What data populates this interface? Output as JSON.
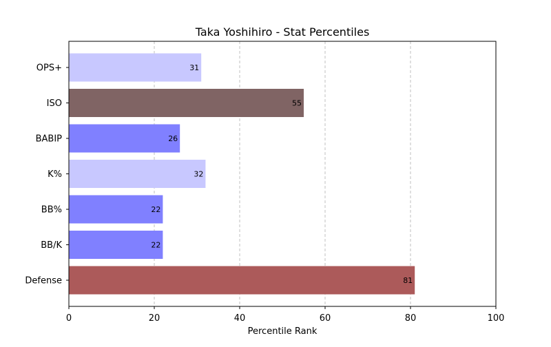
{
  "chart_data": {
    "type": "bar",
    "orientation": "horizontal",
    "title": "Taka Yoshihiro - Stat Percentiles",
    "xlabel": "Percentile Rank",
    "ylabel": "",
    "xlim": [
      0,
      100
    ],
    "xticks": [
      0,
      20,
      40,
      60,
      80,
      100
    ],
    "grid": "x-dashed",
    "categories": [
      "OPS+",
      "ISO",
      "BABIP",
      "K%",
      "BB%",
      "BB/K",
      "Defense"
    ],
    "values": [
      31,
      55,
      26,
      32,
      22,
      22,
      81
    ],
    "colors": [
      "#c8c8ff",
      "#806464",
      "#8080ff",
      "#c8c8ff",
      "#8080ff",
      "#8080ff",
      "#ac5a5a"
    ]
  }
}
